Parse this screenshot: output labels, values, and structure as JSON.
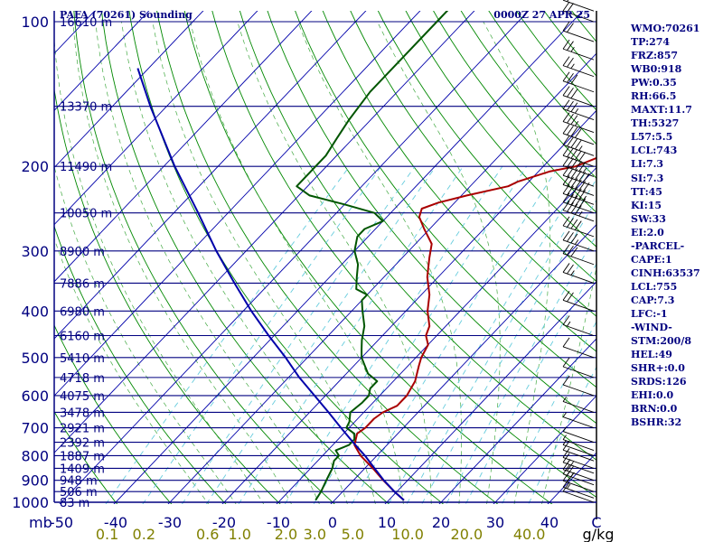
{
  "chart_data": {
    "type": "skew-t log-p sounding",
    "title": "PAFA (70261) Sounding",
    "time_label": "0000Z 27 APR 25",
    "pressure_ticks": [
      "100",
      "200",
      "300",
      "400",
      "500",
      "600",
      "700",
      "800",
      "900",
      "1000"
    ],
    "pressure_axis_label": "mb",
    "temperature_ticks": [
      "-50",
      "-40",
      "-30",
      "-20",
      "-10",
      "0",
      "10",
      "20",
      "30",
      "40"
    ],
    "temperature_corner_label": "C",
    "mixing_ratio_ticks": [
      "0.1",
      "0.2",
      "0.6",
      "1.0",
      "2.0",
      "3.0",
      "5.0",
      "10.0",
      "20.0",
      "40.0"
    ],
    "mixing_ratio_unit": "g/kg",
    "height_labels": [
      {
        "p": 100,
        "label": "16610 m"
      },
      {
        "p": 150,
        "label": "13370 m"
      },
      {
        "p": 200,
        "label": "11490 m"
      },
      {
        "p": 250,
        "label": "10050 m"
      },
      {
        "p": 300,
        "label": "8900 m"
      },
      {
        "p": 350,
        "label": "7886 m"
      },
      {
        "p": 400,
        "label": "6980 m"
      },
      {
        "p": 450,
        "label": "6160 m"
      },
      {
        "p": 500,
        "label": "5410 m"
      },
      {
        "p": 550,
        "label": "4718 m"
      },
      {
        "p": 600,
        "label": "4075 m"
      },
      {
        "p": 650,
        "label": "3478 m"
      },
      {
        "p": 700,
        "label": "2921 m"
      },
      {
        "p": 750,
        "label": "2392 m"
      },
      {
        "p": 800,
        "label": "1887 m"
      },
      {
        "p": 850,
        "label": "1409 m"
      },
      {
        "p": 900,
        "label": "948 m"
      },
      {
        "p": 950,
        "label": "506 m"
      },
      {
        "p": 1000,
        "label": "83 m"
      }
    ],
    "series": [
      {
        "role": "temperature",
        "color": "#aa0000",
        "points": [
          [
            990,
            12.8
          ],
          [
            950,
            9.5
          ],
          [
            900,
            5.5
          ],
          [
            850,
            1.5
          ],
          [
            800,
            -3
          ],
          [
            760,
            -6
          ],
          [
            720,
            -7.5
          ],
          [
            700,
            -7
          ],
          [
            670,
            -7
          ],
          [
            650,
            -6.5
          ],
          [
            630,
            -5
          ],
          [
            600,
            -5
          ],
          [
            560,
            -6
          ],
          [
            520,
            -8
          ],
          [
            500,
            -9
          ],
          [
            470,
            -10
          ],
          [
            450,
            -12
          ],
          [
            430,
            -13
          ],
          [
            400,
            -16
          ],
          [
            370,
            -18.5
          ],
          [
            340,
            -22
          ],
          [
            310,
            -25
          ],
          [
            290,
            -27
          ],
          [
            270,
            -31
          ],
          [
            255,
            -34
          ],
          [
            245,
            -35
          ],
          [
            238,
            -33
          ],
          [
            230,
            -29
          ],
          [
            220,
            -23
          ],
          [
            215,
            -22
          ],
          [
            205,
            -18
          ],
          [
            200,
            -14
          ],
          [
            190,
            -11
          ],
          [
            160,
            -13
          ],
          [
            140,
            -16
          ],
          [
            120,
            -19
          ],
          [
            100,
            -22
          ]
        ]
      },
      {
        "role": "dewpoint",
        "color": "#005500",
        "points": [
          [
            990,
            -3.5
          ],
          [
            950,
            -4
          ],
          [
            900,
            -5
          ],
          [
            850,
            -6
          ],
          [
            820,
            -7
          ],
          [
            800,
            -7
          ],
          [
            780,
            -8.5
          ],
          [
            760,
            -7
          ],
          [
            740,
            -7
          ],
          [
            720,
            -8
          ],
          [
            700,
            -10.5
          ],
          [
            680,
            -11
          ],
          [
            650,
            -12.5
          ],
          [
            620,
            -12
          ],
          [
            600,
            -12
          ],
          [
            580,
            -13
          ],
          [
            560,
            -13
          ],
          [
            540,
            -16
          ],
          [
            500,
            -20
          ],
          [
            480,
            -21.5
          ],
          [
            460,
            -23
          ],
          [
            430,
            -25
          ],
          [
            400,
            -28
          ],
          [
            380,
            -30
          ],
          [
            370,
            -30
          ],
          [
            360,
            -33
          ],
          [
            340,
            -35
          ],
          [
            320,
            -37
          ],
          [
            300,
            -40
          ],
          [
            280,
            -42
          ],
          [
            270,
            -42
          ],
          [
            260,
            -40
          ],
          [
            250,
            -43
          ],
          [
            240,
            -50
          ],
          [
            230,
            -58
          ],
          [
            220,
            -62
          ],
          [
            200,
            -62
          ],
          [
            190,
            -62
          ],
          [
            175,
            -63
          ],
          [
            160,
            -64
          ],
          [
            140,
            -65
          ],
          [
            120,
            -65
          ],
          [
            100,
            -65
          ],
          [
            90,
            -65
          ]
        ]
      },
      {
        "role": "parcel",
        "color": "#0000aa",
        "points": [
          [
            990,
            12.8
          ],
          [
            950,
            9.5
          ],
          [
            900,
            5.6
          ],
          [
            850,
            1.8
          ],
          [
            800,
            -2.2
          ],
          [
            755,
            -6.3
          ],
          [
            700,
            -11.5
          ],
          [
            650,
            -16.5
          ],
          [
            600,
            -22
          ],
          [
            550,
            -28
          ],
          [
            500,
            -34
          ],
          [
            450,
            -41
          ],
          [
            400,
            -48.5
          ],
          [
            350,
            -56.5
          ],
          [
            300,
            -65.5
          ],
          [
            250,
            -75.5
          ],
          [
            200,
            -88
          ],
          [
            150,
            -103
          ],
          [
            125,
            -112
          ]
        ]
      }
    ],
    "wind_barbs": [
      {
        "p": 1000,
        "spd": 10
      },
      {
        "p": 980,
        "spd": 15
      },
      {
        "p": 950,
        "spd": 20
      },
      {
        "p": 920,
        "spd": 25
      },
      {
        "p": 900,
        "spd": 20
      },
      {
        "p": 870,
        "spd": 15
      },
      {
        "p": 850,
        "spd": 10
      },
      {
        "p": 820,
        "spd": 10
      },
      {
        "p": 800,
        "spd": 5
      },
      {
        "p": 780,
        "spd": 5
      },
      {
        "p": 750,
        "spd": 5
      },
      {
        "p": 700,
        "spd": 5
      },
      {
        "p": 650,
        "spd": 5
      },
      {
        "p": 600,
        "spd": 10
      },
      {
        "p": 550,
        "spd": 10
      },
      {
        "p": 500,
        "spd": 10
      },
      {
        "p": 450,
        "spd": 15
      },
      {
        "p": 400,
        "spd": 20
      },
      {
        "p": 350,
        "spd": 25
      },
      {
        "p": 320,
        "spd": 30
      },
      {
        "p": 300,
        "spd": 35
      },
      {
        "p": 280,
        "spd": 40
      },
      {
        "p": 260,
        "spd": 45
      },
      {
        "p": 250,
        "spd": 50
      },
      {
        "p": 240,
        "spd": 55
      },
      {
        "p": 230,
        "spd": 60
      },
      {
        "p": 220,
        "spd": 60
      },
      {
        "p": 210,
        "spd": 55
      },
      {
        "p": 200,
        "spd": 50
      },
      {
        "p": 190,
        "spd": 45
      },
      {
        "p": 180,
        "spd": 40
      },
      {
        "p": 170,
        "spd": 35
      },
      {
        "p": 160,
        "spd": 35
      },
      {
        "p": 150,
        "spd": 30
      },
      {
        "p": 140,
        "spd": 30
      },
      {
        "p": 130,
        "spd": 25
      },
      {
        "p": 120,
        "spd": 25
      },
      {
        "p": 110,
        "spd": 20
      },
      {
        "p": 100,
        "spd": 20
      },
      {
        "p": 95,
        "spd": 20
      }
    ],
    "xlim": [
      -50,
      50
    ],
    "plim": [
      1000,
      100
    ],
    "colors": {
      "isobar": "#000080",
      "isotherm": "#0000aa",
      "dry_adiabat": "#008800",
      "moist_adiabat": "#44aa44",
      "mixing_ratio": "#66ccdd",
      "text_navy": "#000080",
      "text_olive": "#808000",
      "text_black": "#000000"
    }
  },
  "indices": [
    "WMO:70261",
    "TP:274",
    "FRZ:857",
    "WB0:918",
    "PW:0.35",
    "RH:66.5",
    "MAXT:11.7",
    "TH:5327",
    "L57:5.5",
    "LCL:743",
    "LI:7.3",
    "SI:7.3",
    "TT:45",
    "KI:15",
    "SW:33",
    "EI:2.0",
    "-PARCEL-",
    "CAPE:1",
    "CINH:63537",
    "LCL:755",
    "CAP:7.3",
    "LFC:-1",
    "-WIND-",
    "STM:200/8",
    "HEL:49",
    "SHR+:0.0",
    "SRDS:126",
    "EHI:0.0",
    "BRN:0.0",
    "BSHR:32"
  ]
}
